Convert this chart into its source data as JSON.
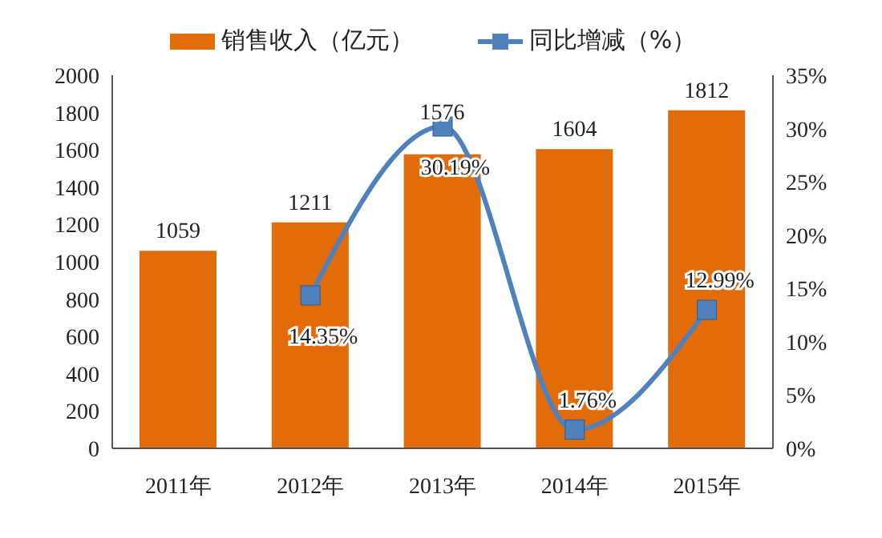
{
  "chart_data": {
    "type": "bar",
    "categories": [
      "2011年",
      "2012年",
      "2013年",
      "2014年",
      "2015年"
    ],
    "series": [
      {
        "name": "销售收入（亿元）",
        "color": "#e36c0a",
        "values": [
          1059,
          1211,
          1576,
          1604,
          1812
        ],
        "value_labels": [
          "1059",
          "1211",
          "1576",
          "1604",
          "1812"
        ]
      },
      {
        "name": "同比增减（%）",
        "type": "line",
        "axis": "y2",
        "color": "#4f81bd",
        "marker": "square",
        "values": [
          null,
          14.35,
          30.19,
          1.76,
          12.99
        ],
        "value_labels": [
          null,
          "14.35%",
          "30.19%",
          "1.76%",
          "12.99%"
        ]
      }
    ],
    "ylim": [
      0,
      2000
    ],
    "yticks": [
      0,
      200,
      400,
      600,
      800,
      1000,
      1200,
      1400,
      1600,
      1800,
      2000
    ],
    "y2lim": [
      0,
      35
    ],
    "y2ticks": [
      {
        "value": 0,
        "label": "0%"
      },
      {
        "value": 5,
        "label": "5%"
      },
      {
        "value": 10,
        "label": "10%"
      },
      {
        "value": 15,
        "label": "15%"
      },
      {
        "value": 20,
        "label": "20%"
      },
      {
        "value": 25,
        "label": "25%"
      },
      {
        "value": 30,
        "label": "30%"
      },
      {
        "value": 35,
        "label": "35%"
      }
    ],
    "legend": "top",
    "grid": false
  }
}
